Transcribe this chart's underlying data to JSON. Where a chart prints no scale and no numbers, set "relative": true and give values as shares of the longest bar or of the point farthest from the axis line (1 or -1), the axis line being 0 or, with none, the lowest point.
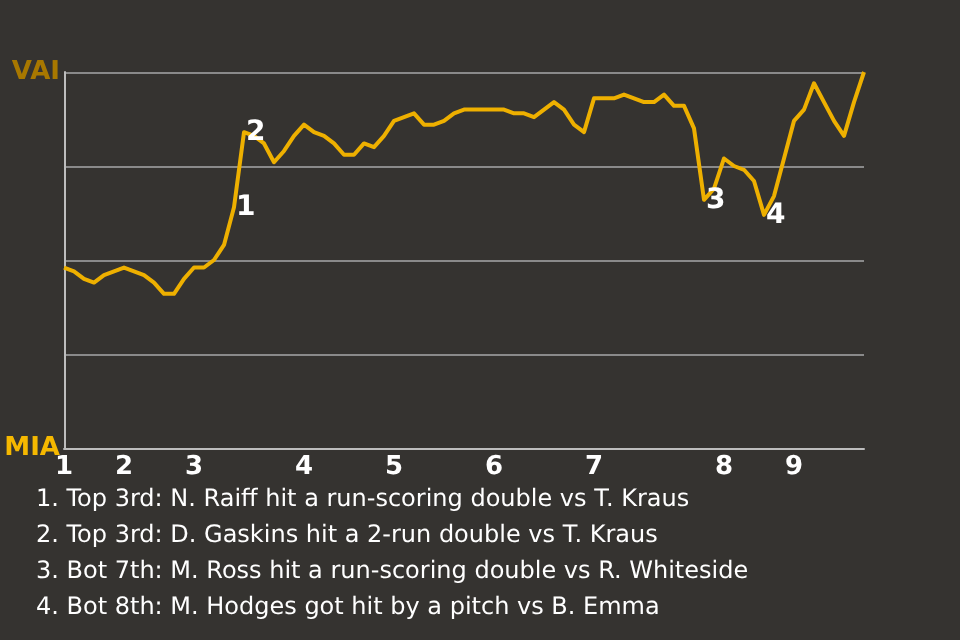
{
  "chart_data": {
    "type": "line",
    "relative": true,
    "categories": [
      "1",
      null,
      null,
      null,
      null,
      null,
      "2",
      null,
      null,
      null,
      null,
      null,
      null,
      "3",
      null,
      null,
      null,
      null,
      null,
      null,
      null,
      null,
      null,
      null,
      "4",
      null,
      null,
      null,
      null,
      null,
      null,
      null,
      null,
      "5",
      null,
      null,
      null,
      null,
      null,
      null,
      null,
      null,
      null,
      "6",
      null,
      null,
      null,
      null,
      null,
      null,
      null,
      null,
      null,
      "7",
      null,
      null,
      null,
      null,
      null,
      null,
      null,
      null,
      null,
      null,
      null,
      null,
      "8",
      null,
      null,
      null,
      null,
      null,
      null,
      "9",
      null,
      null,
      null,
      null,
      null,
      null,
      null
    ],
    "series": [
      {
        "color": "#eeb000",
        "values": [
          0.48,
          0.47,
          0.45,
          0.44,
          0.46,
          0.47,
          0.48,
          0.47,
          0.46,
          0.44,
          0.41,
          0.41,
          0.45,
          0.48,
          0.48,
          0.5,
          0.54,
          0.64,
          0.84,
          0.83,
          0.81,
          0.76,
          0.79,
          0.83,
          0.86,
          0.84,
          0.83,
          0.81,
          0.78,
          0.78,
          0.81,
          0.8,
          0.83,
          0.87,
          0.88,
          0.89,
          0.86,
          0.86,
          0.87,
          0.89,
          0.9,
          0.9,
          0.9,
          0.9,
          0.9,
          0.89,
          0.89,
          0.88,
          0.9,
          0.92,
          0.9,
          0.86,
          0.84,
          0.93,
          0.93,
          0.93,
          0.94,
          0.93,
          0.92,
          0.92,
          0.94,
          0.91,
          0.91,
          0.85,
          0.66,
          0.69,
          0.77,
          0.75,
          0.74,
          0.71,
          0.62,
          0.67,
          0.77,
          0.87,
          0.9,
          0.97,
          0.92,
          0.87,
          0.83,
          0.92,
          1
        ]
      }
    ],
    "grid": "y",
    "marker": "none",
    "line_style": "solid",
    "annotations": [
      "VAI",
      "MIA",
      {
        "text": "1",
        "y": 0.64
      },
      {
        "text": "2",
        "y": 0.84
      },
      {
        "text": "3",
        "y": 0.66
      },
      {
        "text": "4",
        "y": 0.62
      },
      "1. Top 3rd: N. Raiff hit a run-scoring double vs T. Kraus",
      "2. Top 3rd: D. Gaskins hit a 2-run double vs T. Kraus",
      "3. Bot 7th: M. Ross hit a run-scoring double vs R. Whiteside",
      "4. Bot 8th: M. Hodges got hit by a pitch vs B. Emma"
    ]
  }
}
